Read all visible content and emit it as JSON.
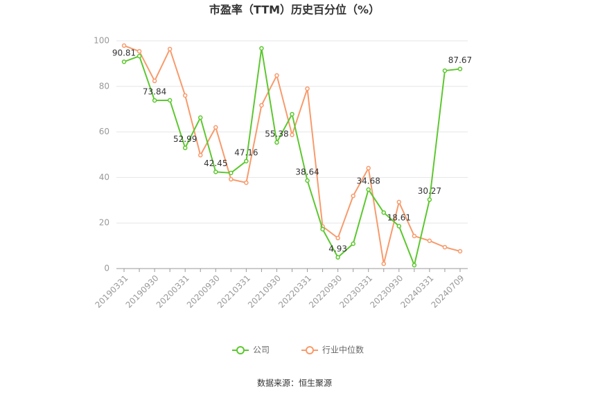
{
  "chart_data": {
    "type": "line",
    "title": "市盈率（TTM）历史百分位（%）",
    "source": "数据来源：恒生聚源",
    "categories": [
      "20190331",
      null,
      "20190930",
      null,
      "20200331",
      null,
      "20200930",
      null,
      "20210331",
      null,
      "20210930",
      null,
      "20220331",
      null,
      "20220930",
      null,
      "20230331",
      null,
      "20230930",
      null,
      "20240331",
      null,
      "20240709"
    ],
    "series": [
      {
        "name": "公司",
        "color": "#5cc72e",
        "values": [
          90.81,
          93.3,
          73.84,
          73.9,
          52.99,
          66.3,
          42.45,
          42.0,
          47.16,
          96.7,
          55.38,
          67.8,
          38.64,
          17.3,
          4.93,
          10.9,
          34.68,
          24.6,
          18.61,
          1.5,
          30.27,
          86.9,
          87.67
        ],
        "value_labels": [
          "90.81",
          null,
          "73.84",
          null,
          "52.99",
          null,
          "42.45",
          null,
          "47.16",
          null,
          "55.38",
          null,
          "38.64",
          null,
          "4.93",
          null,
          "34.68",
          null,
          "18.61",
          null,
          "30.27",
          null,
          "87.67"
        ]
      },
      {
        "name": "行业中位数",
        "color": "#f89a6b",
        "values": [
          97.9,
          95.4,
          82.4,
          96.4,
          76.0,
          49.8,
          62.0,
          39.2,
          37.7,
          71.7,
          84.8,
          58.7,
          79.0,
          18.5,
          13.4,
          31.9,
          44.1,
          2.1,
          29.2,
          14.3,
          12.2,
          9.4,
          7.6
        ]
      }
    ],
    "ylim": [
      0,
      100
    ],
    "yticks": [
      0,
      20,
      40,
      60,
      80,
      100
    ],
    "grid": true,
    "legend": "bottom"
  }
}
